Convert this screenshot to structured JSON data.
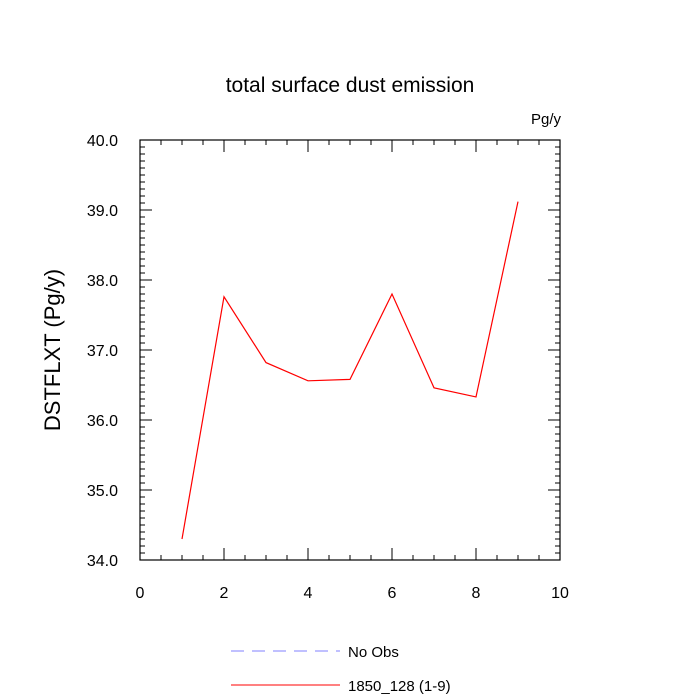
{
  "chart_data": {
    "type": "line",
    "title": "total surface dust emission",
    "units_label": "Pg/y",
    "xlabel": "",
    "ylabel": "DSTFLXT  (Pg/y)",
    "xlim": [
      0,
      10
    ],
    "ylim": [
      34.0,
      40.0
    ],
    "x_ticks": [
      0,
      2,
      4,
      6,
      8,
      10
    ],
    "x_tick_labels": [
      "0",
      "2",
      "4",
      "6",
      "8",
      "10"
    ],
    "y_ticks": [
      34.0,
      35.0,
      36.0,
      37.0,
      38.0,
      39.0,
      40.0
    ],
    "y_tick_labels": [
      "34.0",
      "35.0",
      "36.0",
      "37.0",
      "38.0",
      "39.0",
      "40.0"
    ],
    "grid": false,
    "legend_position": "bottom",
    "series": [
      {
        "name": "1850_128 (1-9)",
        "color": "#ff0000",
        "dash": "solid",
        "x": [
          1,
          2,
          3,
          4,
          5,
          6,
          7,
          8,
          9
        ],
        "values": [
          34.3,
          37.76,
          36.82,
          36.56,
          36.58,
          37.8,
          36.46,
          36.33,
          39.12
        ]
      }
    ],
    "legend": [
      {
        "label": "No Obs",
        "color": "#8080ff",
        "dash": "dashed"
      },
      {
        "label": "1850_128 (1-9)",
        "color": "#ff0000",
        "dash": "solid"
      }
    ]
  }
}
